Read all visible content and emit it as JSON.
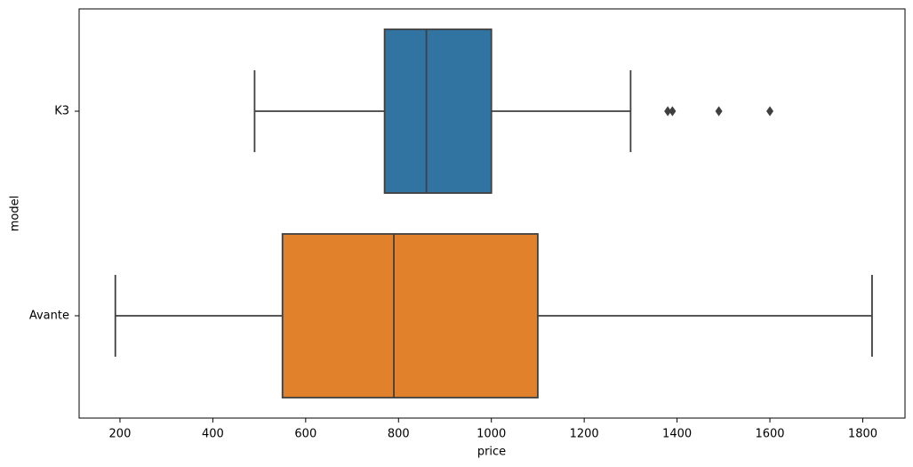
{
  "chart_data": {
    "type": "boxplot",
    "orientation": "horizontal",
    "x_label": "price",
    "y_label": "model",
    "categories": [
      "K3",
      "Avante"
    ],
    "boxes": [
      {
        "whislo": 490,
        "q1": 770,
        "med": 860,
        "q3": 1000,
        "whishi": 1300,
        "fliers": [
          1380,
          1390,
          1490,
          1600
        ],
        "color": "#3274a1"
      },
      {
        "whislo": 190,
        "q1": 550,
        "med": 790,
        "q3": 1100,
        "whishi": 1820,
        "fliers": [],
        "color": "#e1812c"
      }
    ],
    "line_color": "#3f3f3f",
    "xlim": [
      112,
      1891
    ],
    "xticks": [
      200,
      400,
      600,
      800,
      1000,
      1200,
      1400,
      1600,
      1800
    ]
  }
}
